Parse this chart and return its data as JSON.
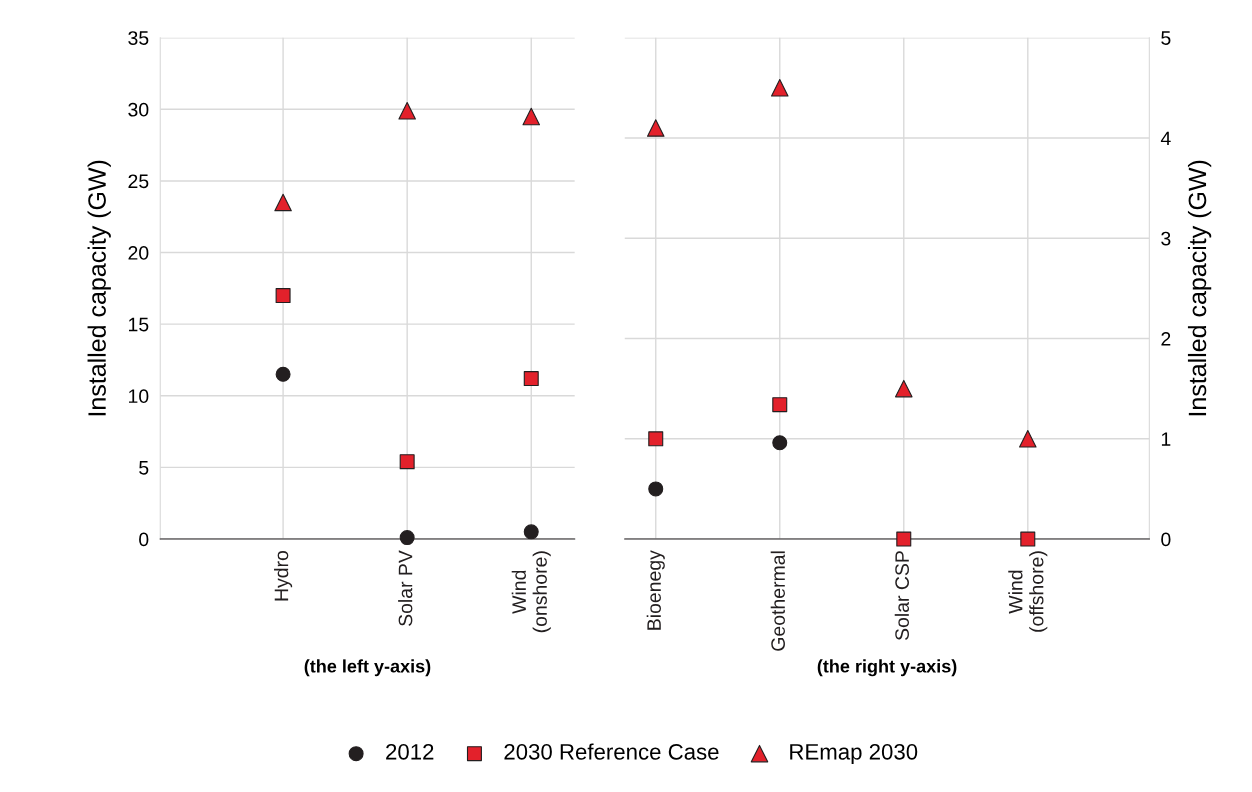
{
  "chart_data": [
    {
      "type": "scatter",
      "categories": [
        "Hydro",
        "Solar PV",
        "Wind\n(onshore)"
      ],
      "xlabel": "(the left y-axis)",
      "ylabel": "Installed capacity (GW)",
      "ylim": [
        0,
        35
      ],
      "yticks": [
        0,
        5,
        10,
        15,
        20,
        25,
        30,
        35
      ],
      "grid": true,
      "legend": "bottom",
      "series": [
        {
          "name": "2012",
          "color": "#231f20",
          "marker": "circle",
          "values": [
            11.5,
            0.1,
            0.5
          ]
        },
        {
          "name": "2030 Reference Case",
          "color": "#e3212b",
          "marker": "square",
          "values": [
            17.0,
            5.4,
            11.2
          ]
        },
        {
          "name": "REmap 2030",
          "color": "#e3212b",
          "marker": "triangle",
          "values": [
            23.5,
            29.9,
            29.5
          ]
        }
      ]
    },
    {
      "type": "scatter",
      "categories": [
        "Bioenegy",
        "Geothermal",
        "Solar CSP",
        "Wind\n(offshore)"
      ],
      "xlabel": "(the right y-axis)",
      "ylabel": "Installed capacity (GW)",
      "ylim": [
        0,
        5
      ],
      "yticks": [
        0,
        1,
        2,
        3,
        4,
        5
      ],
      "grid": true,
      "series": [
        {
          "color": "#231f20",
          "marker": "circle",
          "values": [
            0.5,
            0.96,
            null,
            null
          ]
        },
        {
          "color": "#e3212b",
          "marker": "square",
          "values": [
            1.0,
            1.34,
            0,
            0
          ]
        },
        {
          "color": "#e3212b",
          "marker": "triangle",
          "values": [
            4.1,
            4.5,
            1.5,
            1.0
          ]
        }
      ]
    }
  ]
}
